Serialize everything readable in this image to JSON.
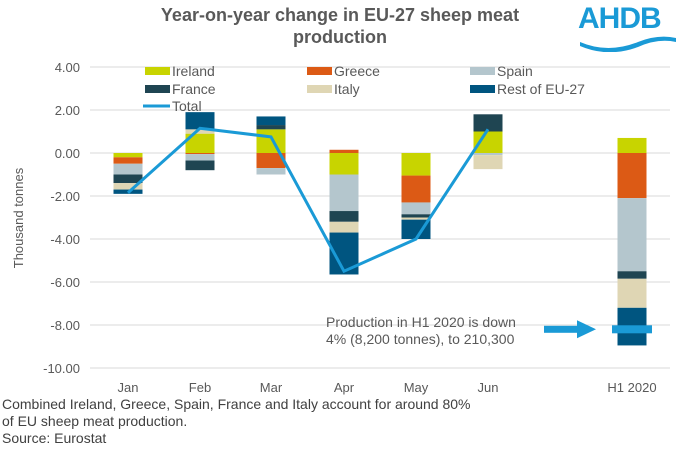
{
  "header": {
    "title": "Year-on-year change in EU-27 sheep meat production",
    "logo_text": "AHDB",
    "logo_color": "#1a9ad6"
  },
  "annotation": {
    "line1": "Production in H1 2020 is down",
    "line2": "4% (8,200 tonnes),  to 210,300",
    "arrow_color": "#1a9ad6"
  },
  "footnote": {
    "line1": "Combined Ireland,  Greece, Spain, France and Italy  account for around 80%",
    "line2": "of EU sheep meat production.",
    "line3": "Source: Eurostat"
  },
  "chart_data": {
    "type": "bar",
    "stacked": true,
    "title": "Year-on-year change in EU-27 sheep meat production",
    "xlabel": "",
    "ylabel": "Thousand tonnes",
    "ylim": [
      -10,
      4
    ],
    "yticks": [
      4,
      2,
      0,
      -2,
      -4,
      -6,
      -8,
      -10
    ],
    "ytick_labels": [
      "4.00",
      "2.00",
      "0.00",
      "-2.00",
      "-4.00",
      "-6.00",
      "-8.00",
      "-10.00"
    ],
    "grid": true,
    "legend_position": "top",
    "categories": [
      "Jan",
      "Feb",
      "Mar",
      "Apr",
      "May",
      "Jun",
      "H1 2020"
    ],
    "series": [
      {
        "name": "Ireland",
        "color": "#c8d400",
        "values": [
          -0.2,
          0.9,
          1.1,
          -1.0,
          -1.05,
          1.0,
          0.7
        ]
      },
      {
        "name": "Greece",
        "color": "#dc5a15",
        "values": [
          -0.3,
          -0.05,
          -0.7,
          0.15,
          -1.25,
          0.0,
          -2.1
        ]
      },
      {
        "name": "Spain",
        "color": "#b4c6cd",
        "values": [
          -0.5,
          -0.3,
          -0.3,
          -1.7,
          -0.55,
          -0.1,
          -3.4
        ]
      },
      {
        "name": "France",
        "color": "#1f4552",
        "values": [
          -0.4,
          -0.45,
          0.2,
          -0.5,
          -0.15,
          0.8,
          -0.35
        ]
      },
      {
        "name": "Italy",
        "color": "#dfd6b4",
        "values": [
          -0.3,
          0.2,
          0.0,
          -0.5,
          -0.1,
          -0.65,
          -1.35
        ]
      },
      {
        "name": "Rest of EU-27",
        "color": "#005580",
        "values": [
          -0.2,
          0.8,
          0.4,
          -1.95,
          -0.9,
          0.0,
          -1.75
        ]
      }
    ],
    "line_series": {
      "name": "Total",
      "color": "#1a9ad6",
      "values": [
        -1.85,
        1.15,
        0.75,
        -5.5,
        -4.0,
        1.1,
        null
      ]
    },
    "h1_total_marker": -8.2,
    "legend": [
      {
        "label": "Ireland",
        "type": "bar",
        "color": "#c8d400"
      },
      {
        "label": "Greece",
        "type": "bar",
        "color": "#dc5a15"
      },
      {
        "label": "Spain",
        "type": "bar",
        "color": "#b4c6cd"
      },
      {
        "label": "France",
        "type": "bar",
        "color": "#1f4552"
      },
      {
        "label": "Italy",
        "type": "bar",
        "color": "#dfd6b4"
      },
      {
        "label": "Rest of EU-27",
        "type": "bar",
        "color": "#005580"
      },
      {
        "label": "Total",
        "type": "line",
        "color": "#1a9ad6"
      }
    ]
  }
}
